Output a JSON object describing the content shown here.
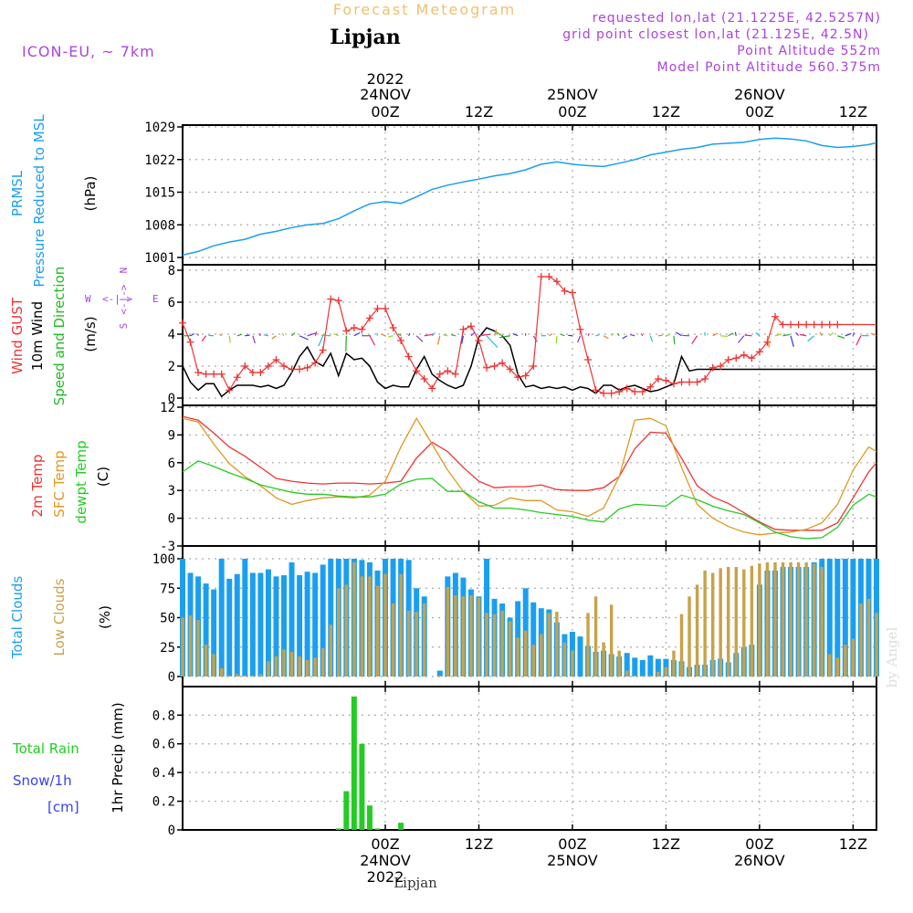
{
  "header": {
    "program_title": "Forecast Meteogram",
    "station": "Lipjan",
    "model": "ICON-EU, ~ 7km",
    "requested": "requested lon,lat (21.1225E, 42.5257N)",
    "grid_point": "grid point closest lon,lat (21.125E, 42.5N)",
    "point_altitude": "Point Altitude 552m",
    "model_altitude": "Model Point Altitude 560.375m",
    "footer_station": "Lipjan",
    "watermark": "by Angel"
  },
  "time_axis": {
    "top_year": "2022",
    "bottom_year": "2022",
    "hours_span": [
      -26,
      63
    ],
    "ticks": [
      {
        "h": 0,
        "label": "00Z",
        "date": "24NOV"
      },
      {
        "h": 12,
        "label": "12Z",
        "date": ""
      },
      {
        "h": 24,
        "label": "00Z",
        "date": "25NOV"
      },
      {
        "h": 36,
        "label": "12Z",
        "date": ""
      },
      {
        "h": 48,
        "label": "00Z",
        "date": "26NOV"
      },
      {
        "h": 60,
        "label": "12Z",
        "date": ""
      }
    ]
  },
  "colors": {
    "pressure": "#1a9ff0",
    "gust": "#ee3333",
    "wind": "#000000",
    "wind_dir": "#22bb22",
    "t2m": "#ee3333",
    "tsfc": "#dd9922",
    "dewpt": "#22cc22",
    "total_clouds": "#1a9ff0",
    "low_clouds": "#c8a24a",
    "rain": "#22cc22",
    "snow": "#3344ee",
    "purple": "#aa44dd"
  },
  "panels": {
    "pressure": {
      "label1": "PRMSL",
      "label2": "Pressure Reduced to MSL",
      "unit": "(hPa)"
    },
    "wind": {
      "label_gust": "Wind GUST",
      "label_wind": "10m Wind",
      "label_dir": "Speed and Direction",
      "unit": "(m/s)",
      "compass_w": "W",
      "compass_e": "E",
      "compass_ns": "N",
      "compass_s": "S",
      "compass_h": "<-|->",
      "compass_v": "<-|->"
    },
    "temp": {
      "label_t2m": "2m Temp",
      "label_sfc": "SFC Temp",
      "label_dew": "dewpt Temp",
      "unit": "(C)"
    },
    "clouds": {
      "label_total": "Total Clouds",
      "label_low": "Low Clouds",
      "unit": "(%)"
    },
    "precip": {
      "label_rain": "Total  Rain",
      "label_snow": "Snow/1h",
      "label_cm": "[cm]",
      "unit": "1hr Precip (mm)"
    }
  },
  "chart_data": [
    {
      "type": "line",
      "title": "PRMSL",
      "ylabel": "(hPa)",
      "ylim": [
        1001,
        1029
      ],
      "yticks": [
        1001,
        1008,
        1015,
        1022,
        1029
      ],
      "x": [
        -26,
        -24,
        -22,
        -20,
        -18,
        -16,
        -14,
        -12,
        -10,
        -8,
        -6,
        -4,
        -2,
        0,
        2,
        4,
        6,
        8,
        10,
        12,
        14,
        16,
        18,
        20,
        22,
        24,
        26,
        28,
        30,
        32,
        34,
        36,
        38,
        40,
        42,
        44,
        46,
        48,
        50,
        52,
        54,
        56,
        58,
        60,
        62,
        63
      ],
      "series": [
        {
          "values": [
            1001.5,
            1002.3,
            1003.5,
            1004.3,
            1004.9,
            1006.0,
            1006.6,
            1007.4,
            1008.0,
            1008.3,
            1009.3,
            1011.0,
            1012.5,
            1013.0,
            1012.6,
            1014.0,
            1015.6,
            1016.5,
            1017.2,
            1017.8,
            1018.5,
            1019.0,
            1019.8,
            1021.0,
            1021.5,
            1021.0,
            1020.7,
            1020.5,
            1021.2,
            1022.0,
            1023.0,
            1023.6,
            1024.2,
            1024.6,
            1025.3,
            1025.5,
            1025.7,
            1026.3,
            1026.6,
            1026.4,
            1026.0,
            1025.0,
            1024.6,
            1024.8,
            1025.2,
            1025.6
          ]
        }
      ]
    },
    {
      "type": "line",
      "title": "Wind",
      "ylabel": "(m/s)",
      "ylim": [
        0,
        8
      ],
      "yticks": [
        0,
        2,
        4,
        6,
        8
      ],
      "x": [
        -26,
        -25,
        -24,
        -23,
        -22,
        -21,
        -20,
        -19,
        -18,
        -17,
        -16,
        -15,
        -14,
        -13,
        -12,
        -11,
        -10,
        -9,
        -8,
        -7,
        -6,
        -5,
        -4,
        -3,
        -2,
        -1,
        0,
        1,
        2,
        3,
        4,
        5,
        6,
        7,
        8,
        9,
        10,
        11,
        12,
        13,
        14,
        15,
        16,
        17,
        18,
        19,
        20,
        21,
        22,
        23,
        24,
        25,
        26,
        27,
        28,
        29,
        30,
        31,
        32,
        33,
        34,
        35,
        36,
        37,
        38,
        39,
        40,
        41,
        42,
        43,
        44,
        45,
        46,
        47,
        48,
        49,
        50,
        51,
        52,
        53,
        54,
        55,
        56,
        57,
        58,
        59,
        60,
        61,
        62,
        63
      ],
      "series": [
        {
          "name": "Wind GUST",
          "values": [
            4.7,
            3.5,
            1.6,
            1.5,
            1.5,
            1.5,
            0.5,
            1.3,
            2.0,
            1.6,
            1.6,
            2.0,
            2.4,
            2.0,
            1.8,
            1.8,
            1.9,
            2.2,
            3.0,
            6.2,
            6.1,
            4.2,
            4.4,
            4.3,
            5.0,
            5.6,
            5.6,
            4.4,
            3.6,
            2.6,
            1.7,
            1.2,
            0.6,
            1.5,
            1.7,
            1.5,
            4.3,
            4.5,
            3.6,
            1.9,
            2.0,
            2.2,
            1.8,
            1.3,
            1.4,
            2.0,
            7.6,
            7.6,
            7.3,
            6.7,
            6.6,
            4.3,
            2.4,
            0.5,
            0.3,
            0.3,
            0.4,
            0.6,
            0.4,
            0.4,
            0.7,
            1.2,
            1.1,
            0.9,
            1.0,
            1.0,
            1.0,
            1.2,
            1.9,
            2.0,
            2.4,
            2.5,
            2.7,
            2.5,
            2.9,
            3.5,
            5.1,
            4.6,
            4.6,
            4.6,
            4.6,
            4.6,
            4.6,
            4.6,
            4.6,
            4.6,
            4.6,
            4.6,
            4.6,
            4.6
          ]
        },
        {
          "name": "10m Wind",
          "values": [
            2.0,
            1.0,
            0.5,
            0.9,
            0.9,
            0.1,
            0.5,
            0.8,
            0.8,
            0.8,
            0.7,
            0.8,
            0.6,
            0.8,
            1.6,
            2.6,
            3.2,
            2.3,
            2.0,
            2.8,
            1.4,
            2.8,
            2.4,
            2.5,
            2.0,
            1.0,
            0.6,
            0.8,
            0.7,
            0.7,
            1.8,
            2.6,
            1.5,
            1.1,
            0.8,
            0.6,
            0.8,
            2.0,
            3.8,
            4.4,
            4.2,
            3.9,
            3.3,
            1.5,
            0.7,
            0.8,
            0.6,
            0.7,
            0.6,
            0.7,
            0.5,
            0.7,
            0.6,
            0.3,
            0.8,
            0.8,
            0.5,
            0.7,
            0.8,
            0.6,
            0.4,
            0.5,
            0.7,
            0.9,
            2.6,
            1.7,
            1.8,
            1.8,
            1.8,
            1.8,
            1.8,
            1.8,
            1.8,
            1.8,
            1.8,
            1.8,
            1.8,
            1.8,
            1.8,
            1.8,
            1.8,
            1.8,
            1.8,
            1.8,
            1.8,
            1.8,
            1.8,
            1.8,
            1.8,
            1.8
          ]
        }
      ]
    },
    {
      "type": "line",
      "title": "Temperature",
      "ylabel": "(C)",
      "ylim": [
        -3,
        12
      ],
      "yticks": [
        -3,
        0,
        3,
        6,
        9,
        12
      ],
      "x": [
        -26,
        -24,
        -22,
        -20,
        -18,
        -16,
        -14,
        -12,
        -10,
        -8,
        -6,
        -4,
        -2,
        0,
        2,
        4,
        6,
        8,
        10,
        12,
        14,
        16,
        18,
        20,
        22,
        24,
        26,
        28,
        30,
        32,
        34,
        36,
        38,
        40,
        42,
        44,
        46,
        48,
        50,
        52,
        54,
        56,
        58,
        60,
        62,
        63
      ],
      "series": [
        {
          "name": "2m Temp",
          "values": [
            11.0,
            10.6,
            9.2,
            7.7,
            6.7,
            5.5,
            4.3,
            4.0,
            3.8,
            3.7,
            3.8,
            3.8,
            3.7,
            3.8,
            4.0,
            6.5,
            8.2,
            7.2,
            5.5,
            4.0,
            3.3,
            3.4,
            3.4,
            3.6,
            3.1,
            3.0,
            3.0,
            3.3,
            4.5,
            7.5,
            9.3,
            9.2,
            6.5,
            3.5,
            2.3,
            1.6,
            0.6,
            -0.4,
            -1.2,
            -1.3,
            -1.3,
            -1.3,
            -0.5,
            2.2,
            5.0,
            6.0
          ]
        },
        {
          "name": "SFC Temp",
          "values": [
            10.8,
            10.4,
            8.0,
            5.9,
            4.5,
            3.5,
            2.2,
            1.5,
            1.9,
            2.2,
            2.3,
            2.2,
            2.5,
            4.0,
            7.7,
            10.8,
            8.0,
            5.2,
            2.9,
            1.3,
            1.4,
            2.2,
            1.9,
            1.9,
            0.9,
            0.7,
            0.2,
            1.1,
            4.5,
            10.6,
            10.8,
            10.0,
            5.5,
            1.5,
            0.0,
            -0.9,
            -1.5,
            -1.8,
            -1.6,
            -1.5,
            -1.2,
            -0.5,
            1.5,
            5.2,
            7.7,
            7.2
          ]
        },
        {
          "name": "dewpt Temp",
          "values": [
            5.0,
            6.2,
            5.6,
            4.9,
            4.3,
            3.6,
            3.2,
            2.8,
            2.6,
            2.6,
            2.4,
            2.3,
            2.3,
            2.6,
            3.7,
            4.2,
            4.3,
            2.9,
            2.9,
            1.8,
            1.1,
            1.1,
            0.9,
            0.6,
            0.4,
            0.2,
            -0.2,
            -0.4,
            1.0,
            1.5,
            1.4,
            1.3,
            2.5,
            2.0,
            1.3,
            0.8,
            0.4,
            -0.5,
            -1.5,
            -2.0,
            -2.2,
            -2.1,
            -1.0,
            1.4,
            2.6,
            2.3
          ]
        }
      ]
    },
    {
      "type": "bar",
      "title": "Clouds",
      "ylabel": "(%)",
      "ylim": [
        0,
        100
      ],
      "yticks": [
        0,
        25,
        50,
        75,
        100
      ],
      "x": [
        -26,
        -25,
        -24,
        -23,
        -22,
        -21,
        -20,
        -19,
        -18,
        -17,
        -16,
        -15,
        -14,
        -13,
        -12,
        -11,
        -10,
        -9,
        -8,
        -7,
        -6,
        -5,
        -4,
        -3,
        -2,
        -1,
        0,
        1,
        2,
        3,
        4,
        5,
        6,
        7,
        8,
        9,
        10,
        11,
        12,
        13,
        14,
        15,
        16,
        17,
        18,
        19,
        20,
        21,
        22,
        23,
        24,
        25,
        26,
        27,
        28,
        29,
        30,
        31,
        32,
        33,
        34,
        35,
        36,
        37,
        38,
        39,
        40,
        41,
        42,
        43,
        44,
        45,
        46,
        47,
        48,
        49,
        50,
        51,
        52,
        53,
        54,
        55,
        56,
        57,
        58,
        59,
        60,
        61,
        62,
        63
      ],
      "series": [
        {
          "name": "Total Clouds",
          "values": [
            100,
            88,
            85,
            79,
            74,
            100,
            83,
            87,
            100,
            88,
            88,
            91,
            85,
            86,
            97,
            86,
            89,
            88,
            95,
            100,
            100,
            100,
            100,
            99,
            97,
            90,
            100,
            100,
            100,
            99,
            75,
            68,
            0,
            5,
            85,
            88,
            84,
            74,
            68,
            100,
            66,
            62,
            50,
            64,
            75,
            63,
            58,
            57,
            46,
            36,
            38,
            34,
            26,
            21,
            22,
            19,
            17,
            20,
            16,
            14,
            18,
            15,
            15,
            14,
            13,
            8,
            10,
            10,
            14,
            15,
            12,
            20,
            25,
            27,
            78,
            90,
            90,
            93,
            93,
            93,
            93,
            97,
            100,
            100,
            100,
            100,
            100,
            100,
            100,
            100
          ]
        },
        {
          "name": "Low Clouds",
          "values": [
            50,
            52,
            48,
            27,
            19,
            7,
            1,
            2,
            1,
            1,
            2,
            13,
            17,
            23,
            21,
            17,
            14,
            16,
            24,
            44,
            75,
            78,
            97,
            85,
            85,
            77,
            87,
            62,
            87,
            56,
            55,
            62,
            0,
            1,
            76,
            69,
            68,
            69,
            67,
            54,
            53,
            56,
            47,
            33,
            39,
            27,
            36,
            54,
            55,
            29,
            22,
            0,
            54,
            68,
            29,
            61,
            22,
            5,
            1,
            1,
            1,
            4,
            8,
            22,
            53,
            68,
            78,
            90,
            88,
            92,
            93,
            93,
            91,
            94,
            96,
            97,
            97,
            97,
            97,
            97,
            97,
            96,
            93,
            19,
            16,
            27,
            32,
            62,
            66,
            54
          ]
        }
      ]
    },
    {
      "type": "bar",
      "title": "1hr Precip",
      "ylabel": "1hr Precip (mm)",
      "ylim": [
        0,
        0.98
      ],
      "yticks": [
        0,
        0.2,
        0.4,
        0.6,
        0.8
      ],
      "x": [
        -6,
        -5,
        -4,
        -3,
        -2,
        -1,
        0,
        1,
        2,
        3,
        4,
        5,
        6,
        7
      ],
      "series": [
        {
          "name": "Total Rain",
          "values": [
            0.01,
            0.27,
            0.93,
            0.6,
            0.17,
            0.01,
            0,
            0,
            0.05,
            0,
            0,
            0,
            0,
            0
          ]
        }
      ]
    }
  ]
}
